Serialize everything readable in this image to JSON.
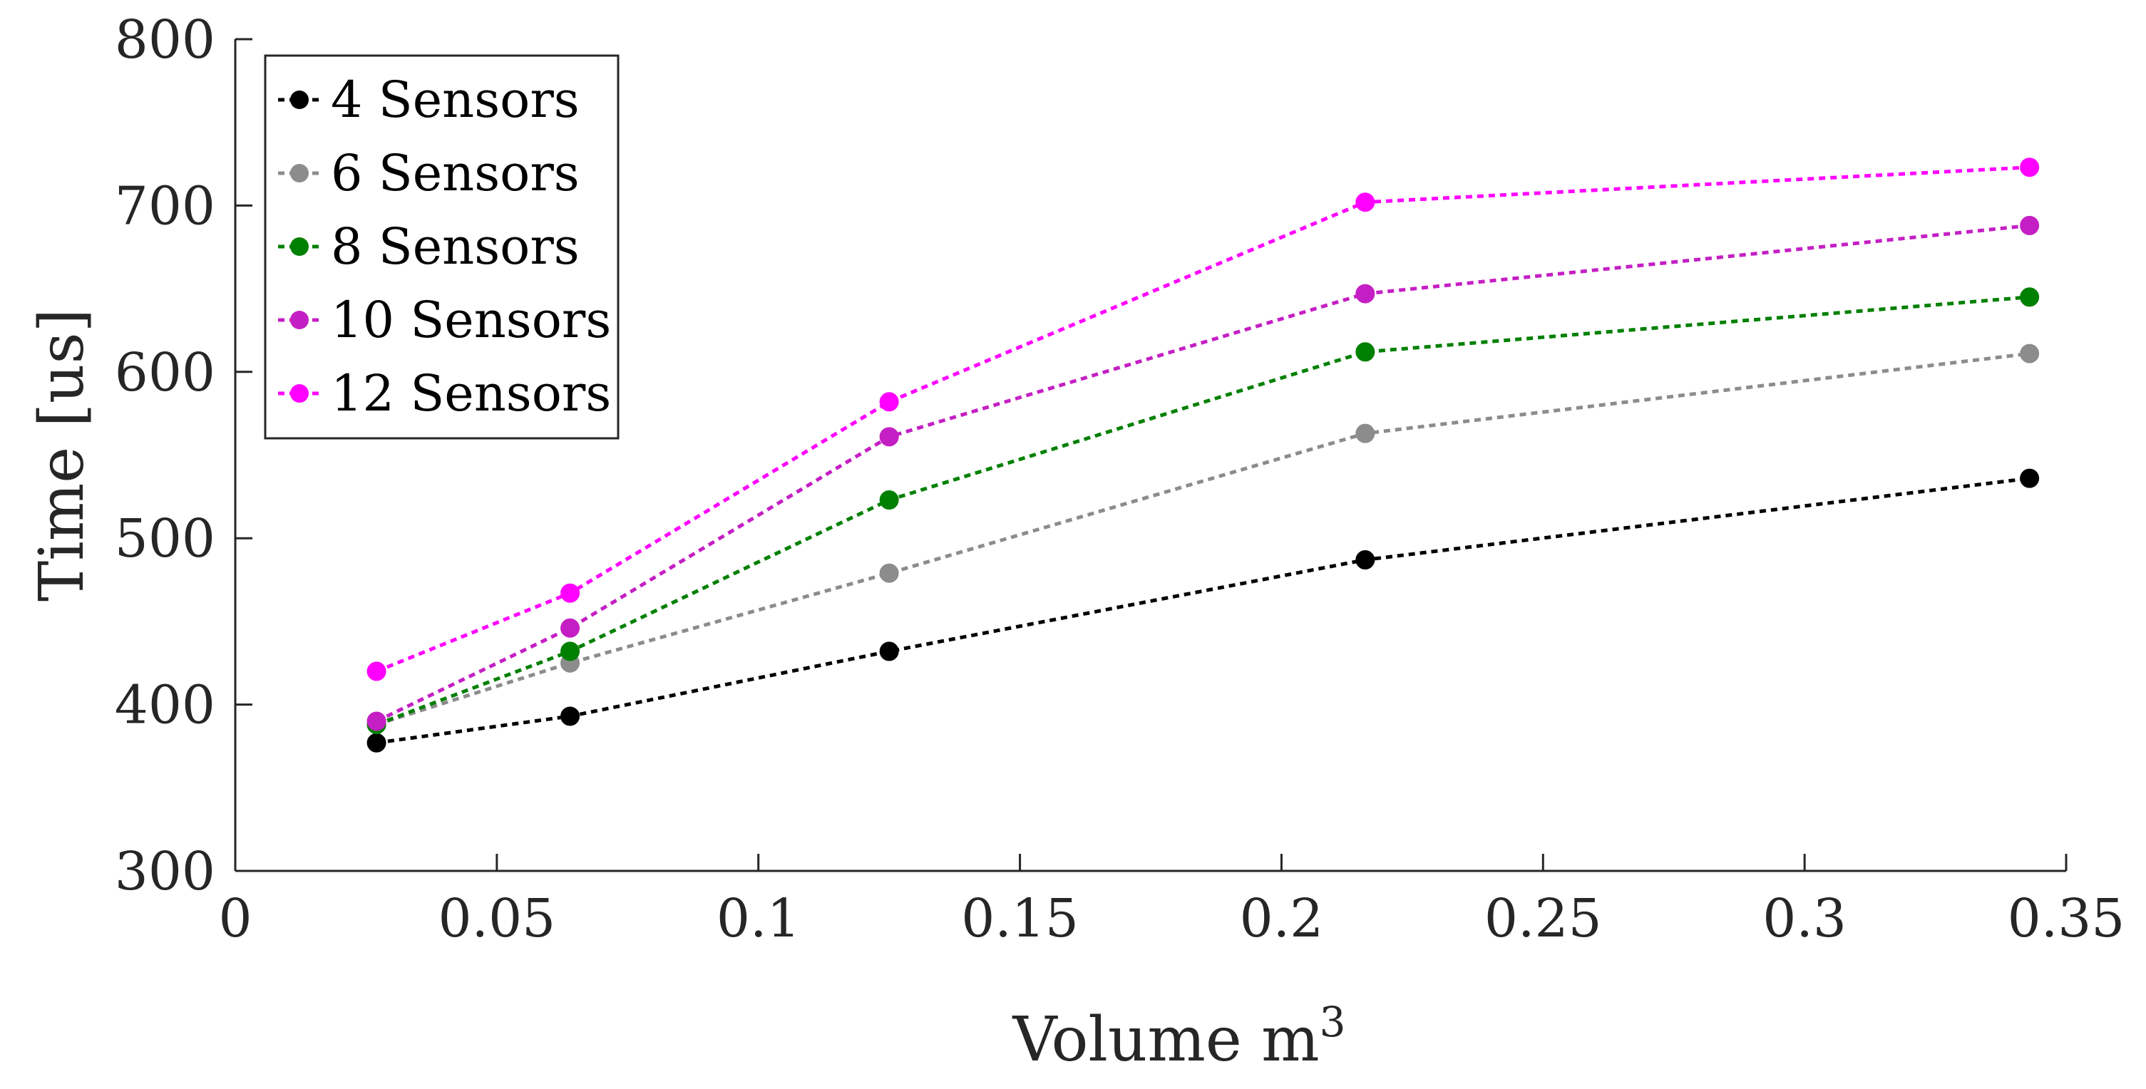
{
  "chart_data": {
    "type": "line",
    "title": "",
    "xlabel": "Volume m",
    "xlabel_superscript": "3",
    "ylabel": "Time [us]",
    "xlim": [
      0,
      0.35
    ],
    "ylim": [
      300,
      800
    ],
    "xticks": [
      0,
      0.05,
      0.1,
      0.15,
      0.2,
      0.25,
      0.3,
      0.35
    ],
    "xtick_labels": [
      "0",
      "0.05",
      "0.1",
      "0.15",
      "0.2",
      "0.25",
      "0.3",
      "0.35"
    ],
    "yticks": [
      300,
      400,
      500,
      600,
      700,
      800
    ],
    "ytick_labels": [
      "300",
      "400",
      "500",
      "600",
      "700",
      "800"
    ],
    "grid": false,
    "legend_position": "top-left",
    "x": [
      0.027,
      0.064,
      0.125,
      0.216,
      0.343
    ],
    "series": [
      {
        "name": "4 Sensors",
        "color": "#000000",
        "values": [
          377,
          393,
          432,
          487,
          536
        ]
      },
      {
        "name": "6 Sensors",
        "color": "#8c8c8c",
        "values": [
          388,
          425,
          479,
          563,
          611
        ]
      },
      {
        "name": "8 Sensors",
        "color": "#008000",
        "values": [
          388,
          432,
          523,
          612,
          645
        ]
      },
      {
        "name": "10 Sensors",
        "color": "#c41fc4",
        "values": [
          390,
          446,
          561,
          647,
          688
        ]
      },
      {
        "name": "12 Sensors",
        "color": "#ff00ff",
        "values": [
          420,
          467,
          582,
          702,
          723
        ]
      }
    ]
  }
}
